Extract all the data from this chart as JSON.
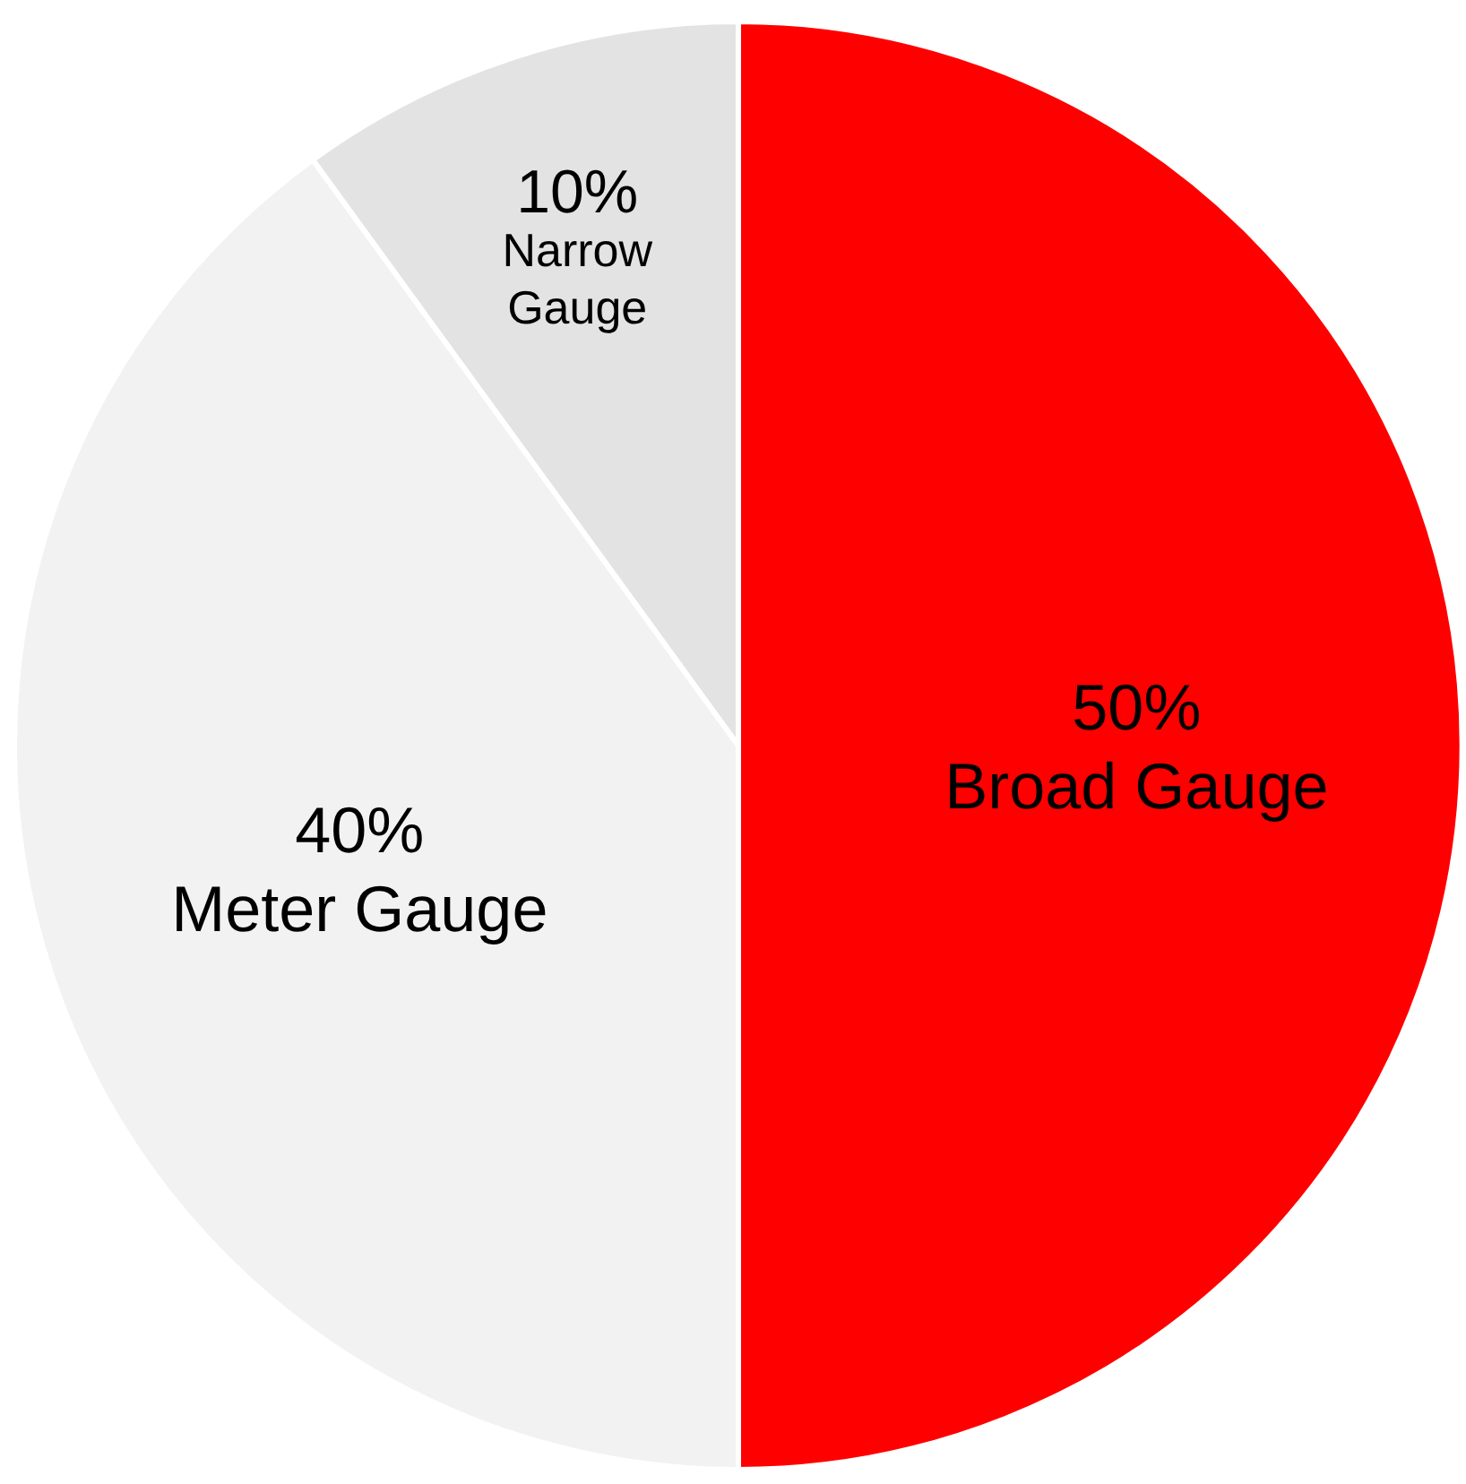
{
  "chart_data": {
    "type": "pie",
    "categories": [
      "Broad Gauge",
      "Meter Gauge",
      "Narrow Gauge"
    ],
    "values": [
      50,
      40,
      10
    ],
    "colors": [
      "#ff0000",
      "#f2f2f2",
      "#e3e3e3"
    ],
    "value_labels": [
      "50%",
      "40%",
      "10%"
    ],
    "legend": false
  }
}
